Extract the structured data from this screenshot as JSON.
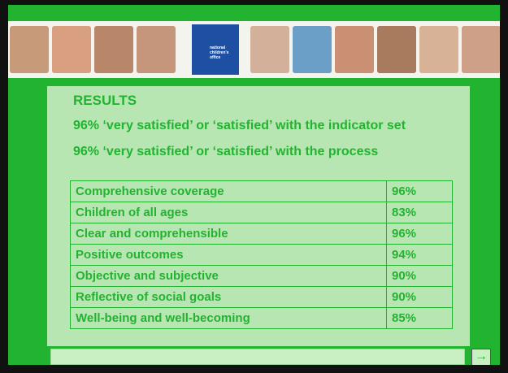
{
  "logo": {
    "lines": [
      "national",
      "children's",
      "office"
    ]
  },
  "slide": {
    "title": "RESULTS",
    "lines": [
      "96% ‘very satisfied’ or ‘satisfied’ with the indicator set",
      "96% ‘very satisfied’ or ‘satisfied’ with the process"
    ]
  },
  "table": {
    "rows": [
      [
        "Comprehensive coverage",
        "96%"
      ],
      [
        "Children of all ages",
        "83%"
      ],
      [
        "Clear and comprehensible",
        "96%"
      ],
      [
        "Positive outcomes",
        "94%"
      ],
      [
        "Objective and subjective",
        "90%"
      ],
      [
        "Reflective of social goals",
        "90%"
      ],
      [
        "Well-being and well-becoming",
        "85%"
      ]
    ]
  }
}
